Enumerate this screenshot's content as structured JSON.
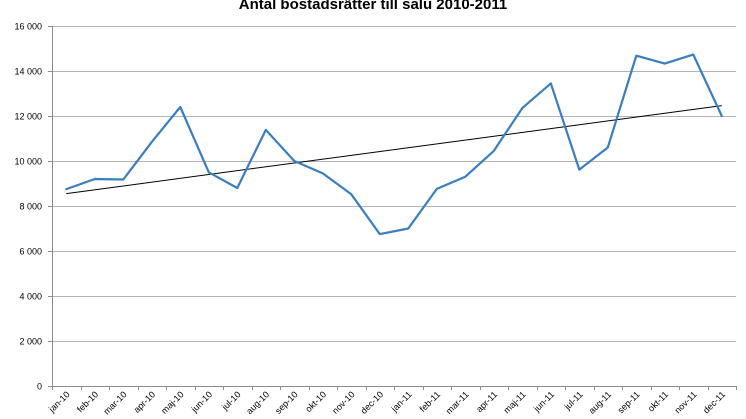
{
  "chart_data": {
    "type": "line",
    "title": "Antal bostadsrätter till salu 2010-2011",
    "xlabel": "",
    "ylabel": "",
    "ylim": [
      0,
      16000
    ],
    "yticks": [
      {
        "value": 0,
        "label": "0"
      },
      {
        "value": 2000,
        "label": "2 000"
      },
      {
        "value": 4000,
        "label": "4 000"
      },
      {
        "value": 6000,
        "label": "6 000"
      },
      {
        "value": 8000,
        "label": "8 000"
      },
      {
        "value": 10000,
        "label": "10 000"
      },
      {
        "value": 12000,
        "label": "12 000"
      },
      {
        "value": 14000,
        "label": "14 000"
      },
      {
        "value": 16000,
        "label": "16 000"
      }
    ],
    "categories": [
      "jan-10",
      "feb-10",
      "mar-10",
      "apr-10",
      "maj-10",
      "jun-10",
      "jul-10",
      "aug-10",
      "sep-10",
      "okt-10",
      "nov-10",
      "dec-10",
      "jan-11",
      "feb-11",
      "mar-11",
      "apr-11",
      "maj-11",
      "jun-11",
      "jul-11",
      "aug-11",
      "sep-11",
      "okt-11",
      "nov-11",
      "dec-11"
    ],
    "series": [
      {
        "values": [
          8750,
          9200,
          9180,
          10850,
          12400,
          9500,
          8800,
          11380,
          10000,
          9450,
          8520,
          6750,
          7000,
          8760,
          9300,
          10450,
          12350,
          13450,
          9620,
          10600,
          14680,
          14330,
          14730,
          12000
        ],
        "color": "#3a7ec0"
      }
    ],
    "trendline": {
      "start": 8550,
      "end": 12460,
      "color": "#000000"
    },
    "grid": true,
    "legend": "none"
  }
}
